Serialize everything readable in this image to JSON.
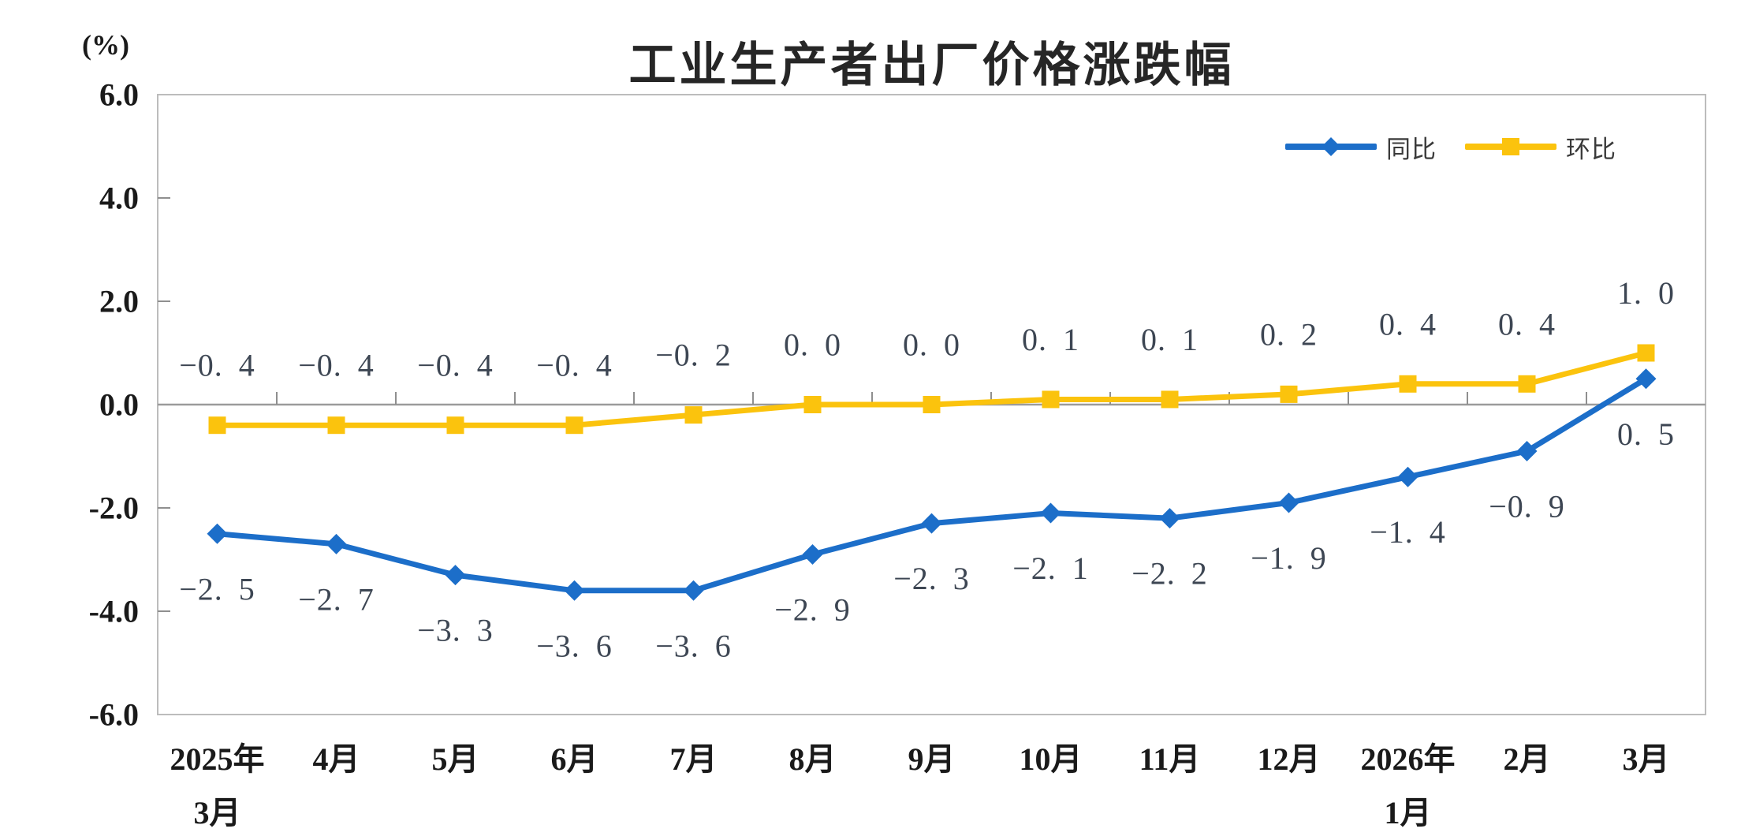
{
  "chart_data": {
    "type": "line",
    "title": "工业生产者出厂价格涨跌幅",
    "y_axis_unit": "(%)",
    "categories": [
      "2025年\n3月",
      "4月",
      "5月",
      "6月",
      "7月",
      "8月",
      "9月",
      "10月",
      "11月",
      "12月",
      "2026年\n1月",
      "2月",
      "3月"
    ],
    "series": [
      {
        "name": "同比",
        "marker": "diamond",
        "color": "#1c6ec9",
        "values": [
          -2.5,
          -2.7,
          -3.3,
          -3.6,
          -3.6,
          -2.9,
          -2.3,
          -2.1,
          -2.2,
          -1.9,
          -1.4,
          -0.9,
          0.5
        ],
        "labels": [
          "-2.5",
          "-2.7",
          "-3.3",
          "-3.6",
          "-3.6",
          "-2.9",
          "-2.3",
          "-2.1",
          "-2.2",
          "-1.9",
          "-1.4",
          "-0.9",
          "0.5"
        ]
      },
      {
        "name": "环比",
        "marker": "square",
        "color": "#fbc30d",
        "values": [
          -0.4,
          -0.4,
          -0.4,
          -0.4,
          -0.2,
          0.0,
          0.0,
          0.1,
          0.1,
          0.2,
          0.4,
          0.4,
          1.0
        ],
        "labels": [
          "-0.4",
          "-0.4",
          "-0.4",
          "-0.4",
          "-0.2",
          "0.0",
          "0.0",
          "0.1",
          "0.1",
          "0.2",
          "0.4",
          "0.4",
          "1.0"
        ]
      }
    ],
    "y_axis": {
      "min": -6.0,
      "max": 6.0,
      "step": 2.0,
      "tick_labels": [
        "6.0",
        "4.0",
        "2.0",
        "0.0",
        "-2.0",
        "-4.0",
        "-6.0"
      ]
    },
    "legend_position": "top-right",
    "grid": false
  },
  "colors": {
    "yoy_blue": "#1c6ec9",
    "mom_yellow": "#fbc30d",
    "zero_line": "#9b9b9b",
    "plot_border": "#bcbcbc",
    "tick": "#8f8f8f",
    "value_label_text": "#3d4653",
    "axis_text": "#1a1a1a",
    "title_text": "#262626",
    "background": "#ffffff"
  }
}
